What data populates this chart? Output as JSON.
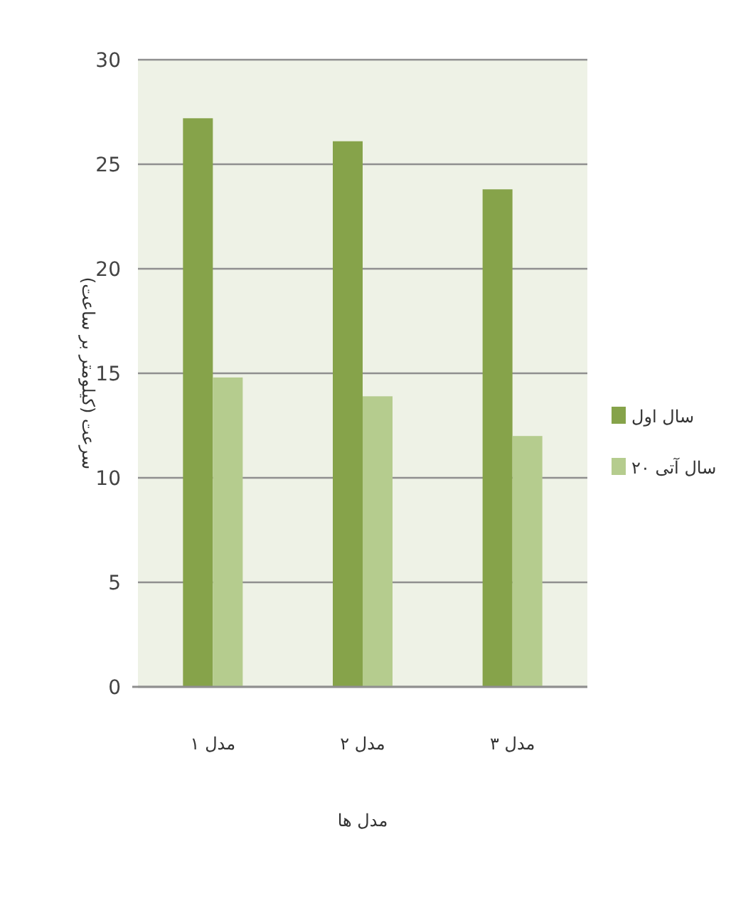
{
  "chart_data": {
    "type": "bar",
    "xlabel": "مدل ها",
    "ylabel": "سرعت (کیلومتر بر ساعت)",
    "categories": [
      "مدل ۱",
      "مدل ۲",
      "مدل ۳"
    ],
    "series": [
      {
        "name": "سال اول",
        "color": "#86a34a",
        "values": [
          27.2,
          26.1,
          23.8
        ]
      },
      {
        "name": "۲۰ سال آتی",
        "color": "#b5cc8e",
        "values": [
          14.8,
          13.9,
          12.0
        ]
      }
    ],
    "ylim": [
      0,
      30
    ],
    "yticks": [
      0,
      5,
      10,
      15,
      20,
      25,
      30
    ],
    "grid": "y",
    "legend": "right"
  }
}
